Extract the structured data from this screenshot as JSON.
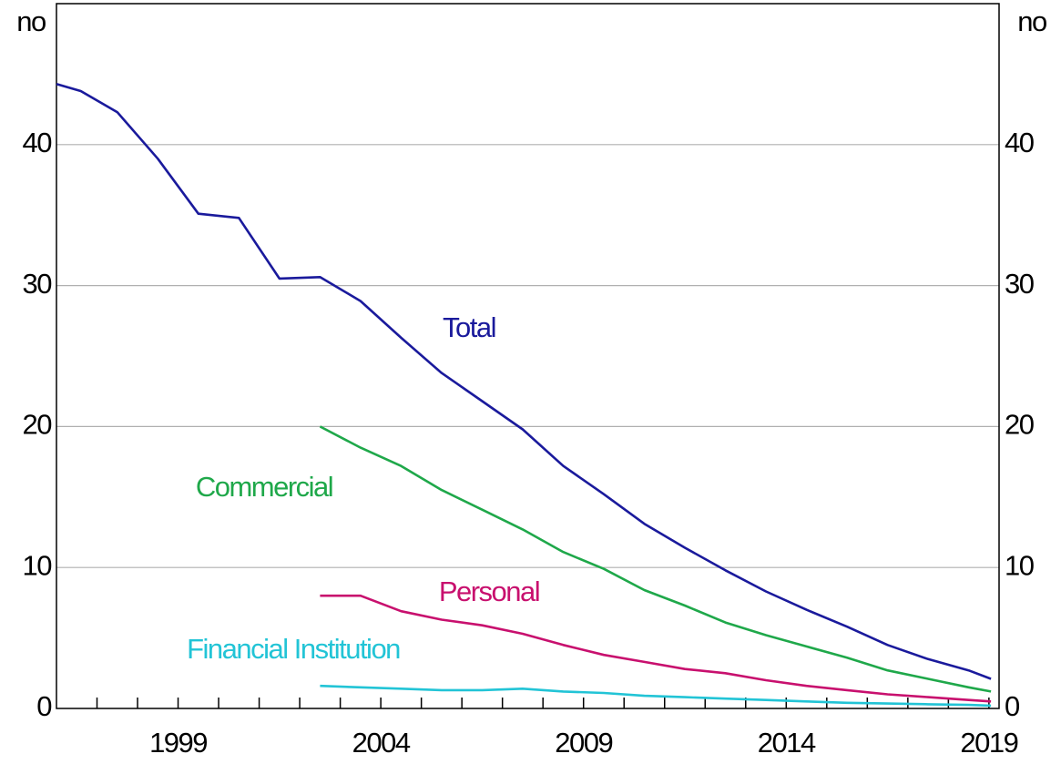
{
  "chart_data": {
    "type": "line",
    "y_label": "no",
    "y2_label": "no",
    "xlim": [
      1996,
      2019.25
    ],
    "xticks": [
      1999,
      2004,
      2009,
      2014,
      2019
    ],
    "xminor_ticks": [
      1997,
      1998,
      1999,
      2000,
      2001,
      2002,
      2003,
      2004,
      2005,
      2006,
      2007,
      2008,
      2009,
      2010,
      2011,
      2012,
      2013,
      2014,
      2015,
      2016,
      2017,
      2018,
      2019
    ],
    "ylim": [
      0,
      50
    ],
    "yticks": [
      0,
      10,
      20,
      30,
      40
    ],
    "y2lim": [
      0,
      50
    ],
    "y2ticks": [
      0,
      10,
      20,
      30,
      40
    ],
    "grid": true,
    "series": [
      {
        "name": "Total",
        "color": "#1a1a9c",
        "x": [
          1996,
          1996.6,
          1997.5,
          1998.5,
          1999.5,
          2000.5,
          2001.5,
          2002.5,
          2003.5,
          2004.5,
          2005.5,
          2006.5,
          2007.5,
          2008.5,
          2009.5,
          2010.5,
          2011.5,
          2012.5,
          2013.5,
          2014.5,
          2015.5,
          2016.5,
          2017.5,
          2018.5,
          2019.05
        ],
        "values": [
          44.3,
          43.8,
          42.3,
          39.0,
          35.1,
          34.8,
          30.5,
          30.6,
          28.9,
          26.3,
          23.8,
          21.8,
          19.8,
          17.2,
          15.2,
          13.1,
          11.4,
          9.8,
          8.3,
          7.0,
          5.8,
          4.5,
          3.5,
          2.7,
          2.1
        ]
      },
      {
        "name": "Commercial",
        "color": "#1fa84a",
        "x": [
          2002.5,
          2003.5,
          2004.5,
          2005.5,
          2006.5,
          2007.5,
          2008.5,
          2009.5,
          2010.5,
          2011.5,
          2012.5,
          2013.5,
          2014.5,
          2015.5,
          2016.5,
          2017.5,
          2018.5,
          2019.05
        ],
        "values": [
          20.0,
          18.5,
          17.2,
          15.5,
          14.1,
          12.7,
          11.1,
          9.9,
          8.4,
          7.3,
          6.1,
          5.2,
          4.4,
          3.6,
          2.7,
          2.1,
          1.5,
          1.2
        ]
      },
      {
        "name": "Personal",
        "color": "#c8106e",
        "x": [
          2002.5,
          2003.5,
          2004.5,
          2005.5,
          2006.5,
          2007.5,
          2008.5,
          2009.5,
          2010.5,
          2011.5,
          2012.5,
          2013.5,
          2014.5,
          2015.5,
          2016.5,
          2017.5,
          2018.5,
          2019.05
        ],
        "values": [
          8.0,
          8.0,
          6.9,
          6.3,
          5.9,
          5.3,
          4.5,
          3.8,
          3.3,
          2.8,
          2.5,
          2.0,
          1.6,
          1.3,
          1.0,
          0.8,
          0.6,
          0.5
        ]
      },
      {
        "name": "Financial Institution",
        "color": "#22c4d6",
        "x": [
          2002.5,
          2003.5,
          2004.5,
          2005.5,
          2006.5,
          2007.5,
          2008.5,
          2009.5,
          2010.5,
          2011.5,
          2012.5,
          2013.5,
          2014.5,
          2015.5,
          2016.5,
          2017.5,
          2018.5,
          2019.05
        ],
        "values": [
          1.6,
          1.5,
          1.4,
          1.3,
          1.3,
          1.4,
          1.2,
          1.1,
          0.9,
          0.8,
          0.7,
          0.6,
          0.5,
          0.4,
          0.35,
          0.3,
          0.25,
          0.2
        ]
      }
    ]
  }
}
